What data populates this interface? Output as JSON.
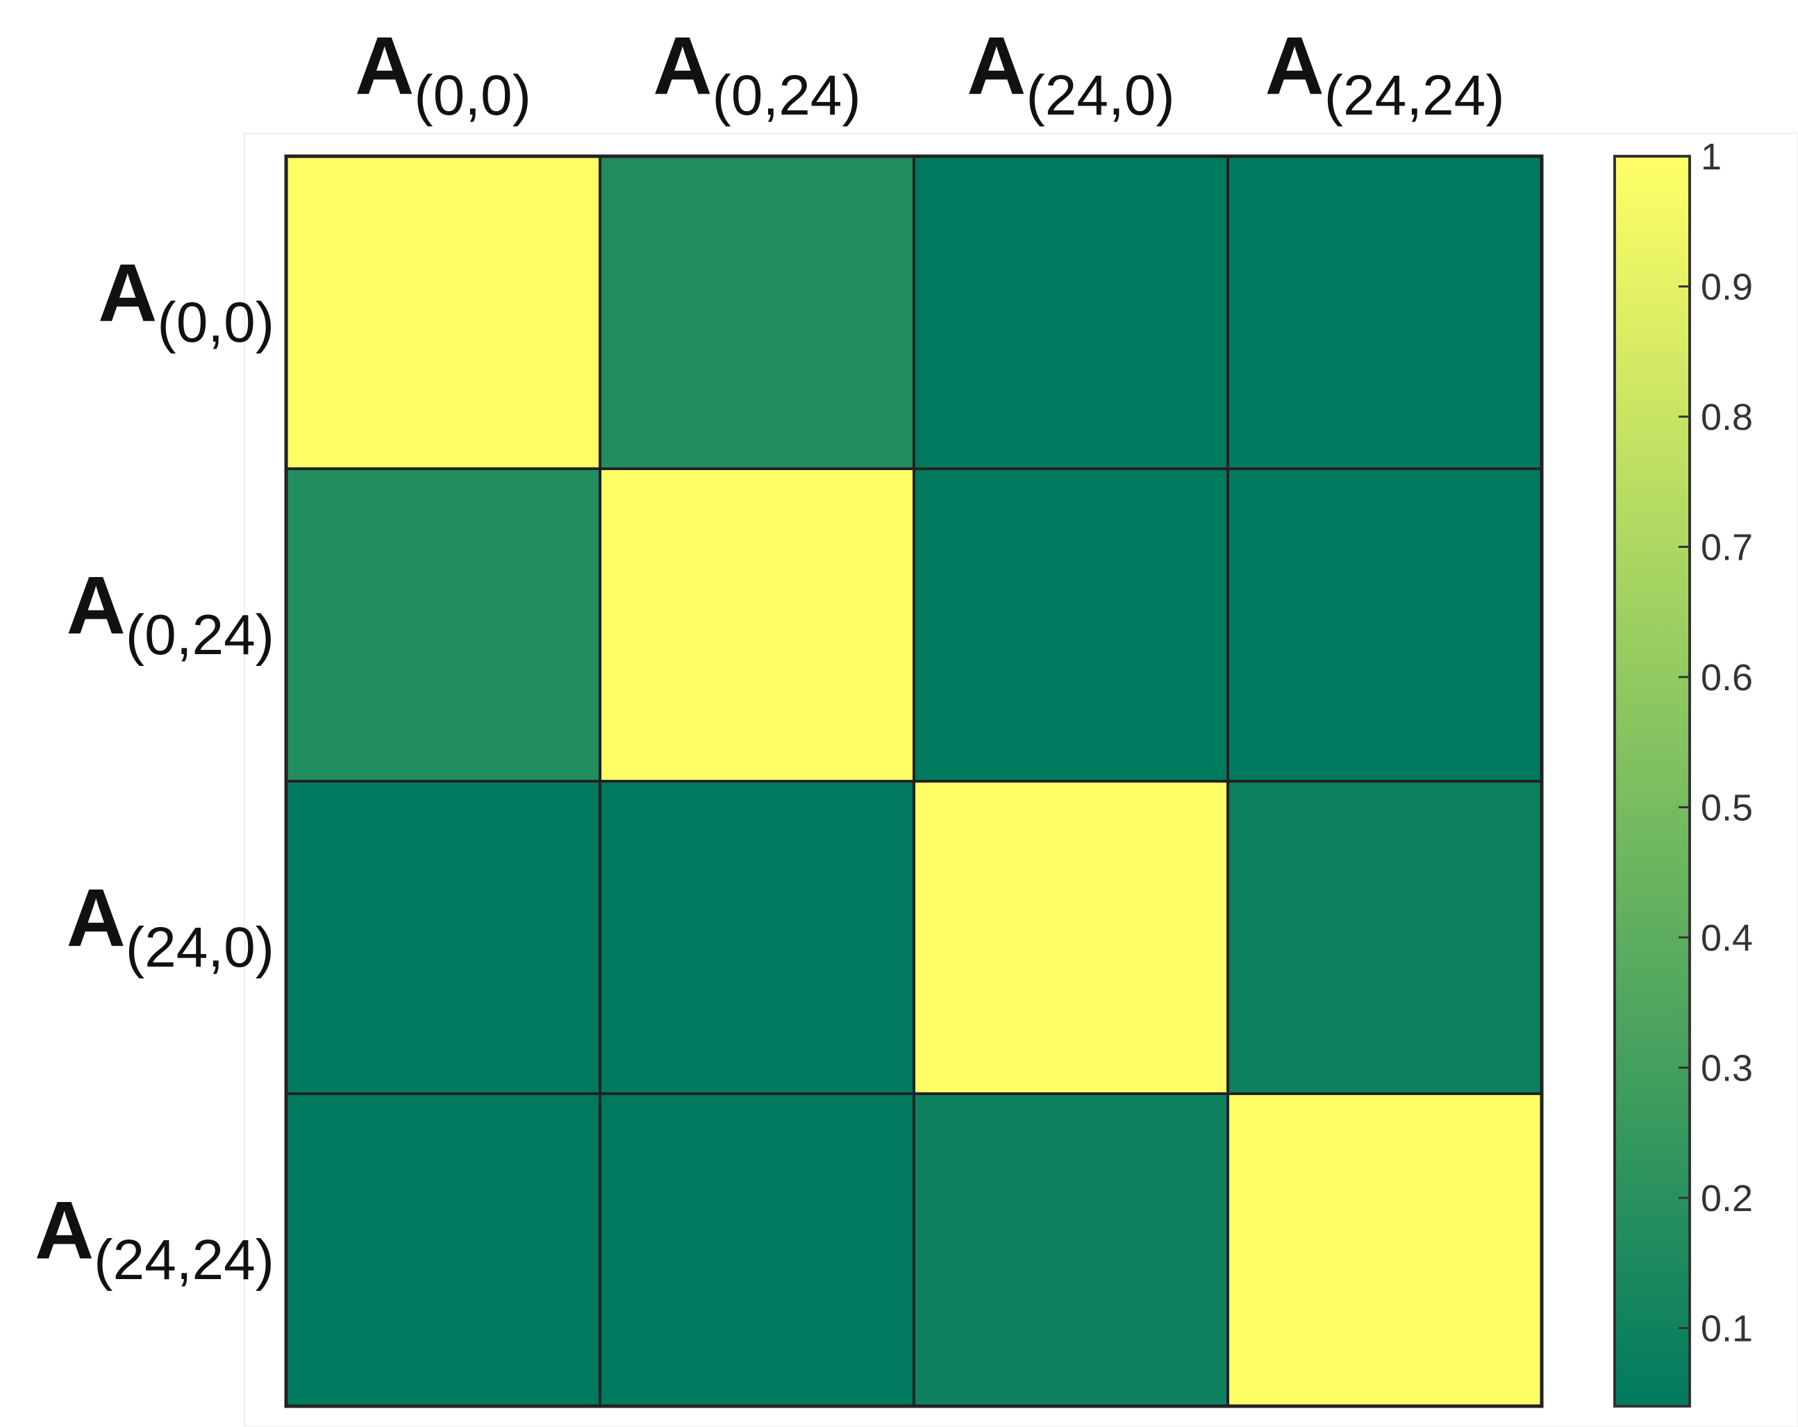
{
  "chart_data": {
    "type": "heatmap",
    "title": "",
    "xlabel": "",
    "ylabel": "",
    "labels": [
      {
        "main": "A",
        "sub": "(0,0)"
      },
      {
        "main": "A",
        "sub": "(0,24)"
      },
      {
        "main": "A",
        "sub": "(24,0)"
      },
      {
        "main": "A",
        "sub": "(24,24)"
      }
    ],
    "values": [
      [
        1.0,
        0.17,
        0.03,
        0.04
      ],
      [
        0.17,
        1.0,
        0.04,
        0.04
      ],
      [
        0.03,
        0.04,
        1.0,
        0.08
      ],
      [
        0.04,
        0.03,
        0.09,
        1.0
      ]
    ],
    "colorbar": {
      "min": 0.04,
      "max": 1.0,
      "ticks": [
        0.1,
        0.2,
        0.3,
        0.4,
        0.5,
        0.6,
        0.7,
        0.8,
        0.9,
        1
      ],
      "tick_labels": [
        "0.1",
        "0.2",
        "0.3",
        "0.4",
        "0.5",
        "0.6",
        "0.7",
        "0.8",
        "0.9",
        "1"
      ],
      "color_low": "#007a5e",
      "color_mid": "#7cbf5f",
      "color_high": "#ffff66"
    },
    "grid": true,
    "colorbar_placement": "right"
  }
}
